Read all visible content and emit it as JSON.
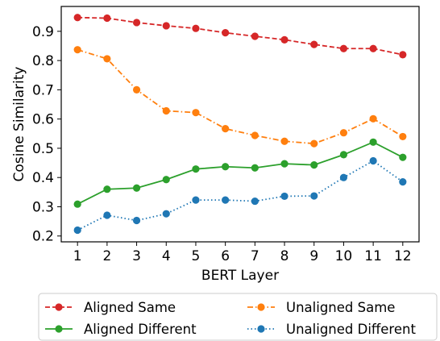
{
  "chart_data": {
    "type": "line",
    "title": "",
    "xlabel": "BERT Layer",
    "ylabel": "Cosine Similarity",
    "x": [
      1,
      2,
      3,
      4,
      5,
      6,
      7,
      8,
      9,
      10,
      11,
      12
    ],
    "x_tick_labels": [
      "1",
      "2",
      "3",
      "4",
      "5",
      "6",
      "7",
      "8",
      "9",
      "10",
      "11",
      "12"
    ],
    "y_ticks": [
      0.2,
      0.3,
      0.4,
      0.5,
      0.6,
      0.7,
      0.8,
      0.9
    ],
    "y_tick_labels": [
      "0.2",
      "0.3",
      "0.4",
      "0.5",
      "0.6",
      "0.7",
      "0.8",
      "0.9"
    ],
    "xlim": [
      0.45,
      12.55
    ],
    "ylim": [
      0.18,
      0.985
    ],
    "grid": false,
    "legend_position": "below plot, two columns",
    "series": [
      {
        "name": "Aligned Same",
        "color": "#d62728",
        "line_style": "dashed",
        "marker": "circle",
        "values": [
          0.947,
          0.945,
          0.93,
          0.919,
          0.91,
          0.895,
          0.883,
          0.871,
          0.855,
          0.841,
          0.841,
          0.82
        ]
      },
      {
        "name": "Unaligned Same",
        "color": "#ff7f0e",
        "line_style": "dashdot",
        "marker": "circle",
        "values": [
          0.837,
          0.806,
          0.7,
          0.628,
          0.622,
          0.567,
          0.544,
          0.524,
          0.516,
          0.553,
          0.601,
          0.54
        ]
      },
      {
        "name": "Aligned Different",
        "color": "#2ca02c",
        "line_style": "solid",
        "marker": "circle",
        "values": [
          0.309,
          0.36,
          0.364,
          0.393,
          0.429,
          0.437,
          0.433,
          0.447,
          0.443,
          0.478,
          0.521,
          0.469
        ]
      },
      {
        "name": "Unaligned Different",
        "color": "#1f77b4",
        "line_style": "dotted",
        "marker": "circle",
        "values": [
          0.22,
          0.271,
          0.253,
          0.276,
          0.323,
          0.323,
          0.319,
          0.336,
          0.337,
          0.4,
          0.457,
          0.385
        ]
      }
    ]
  }
}
